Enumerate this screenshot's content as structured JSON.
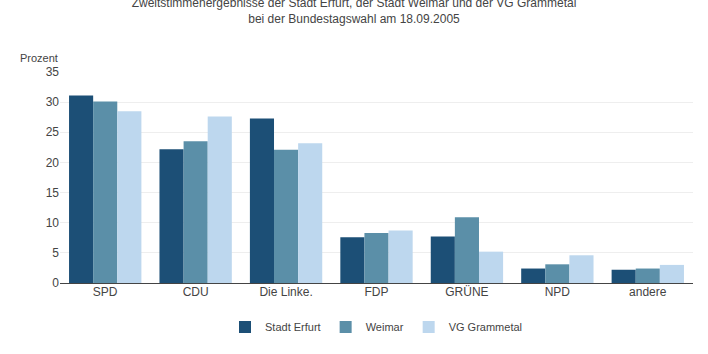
{
  "chart_data": {
    "type": "bar",
    "title": "Zweitstimmenergebnisse der Stadt Erfurt, der Stadt Weimar und der VG Grammetal",
    "subtitle": "bei der Bundestagswahl am 18.09.2005",
    "ylabel": "Prozent",
    "categories": [
      "SPD",
      "CDU",
      "Die Linke.",
      "FDP",
      "GRÜNE",
      "NPD",
      "andere"
    ],
    "series": [
      {
        "name": "Stadt Erfurt",
        "color": "#1c4f76",
        "values": [
          31.1,
          22.2,
          27.3,
          7.6,
          7.7,
          2.4,
          2.2
        ]
      },
      {
        "name": "Weimar",
        "color": "#5b8fa8",
        "values": [
          30.1,
          23.5,
          22.1,
          8.3,
          10.9,
          3.1,
          2.4
        ]
      },
      {
        "name": "VG Grammetal",
        "color": "#bdd7ee",
        "values": [
          28.5,
          27.6,
          23.2,
          8.7,
          5.2,
          4.6,
          3.0
        ]
      }
    ],
    "ylim": [
      0,
      35
    ],
    "yticks": [
      0,
      5,
      10,
      15,
      20,
      25,
      30,
      35
    ],
    "grid": true,
    "legend": "bottom"
  }
}
